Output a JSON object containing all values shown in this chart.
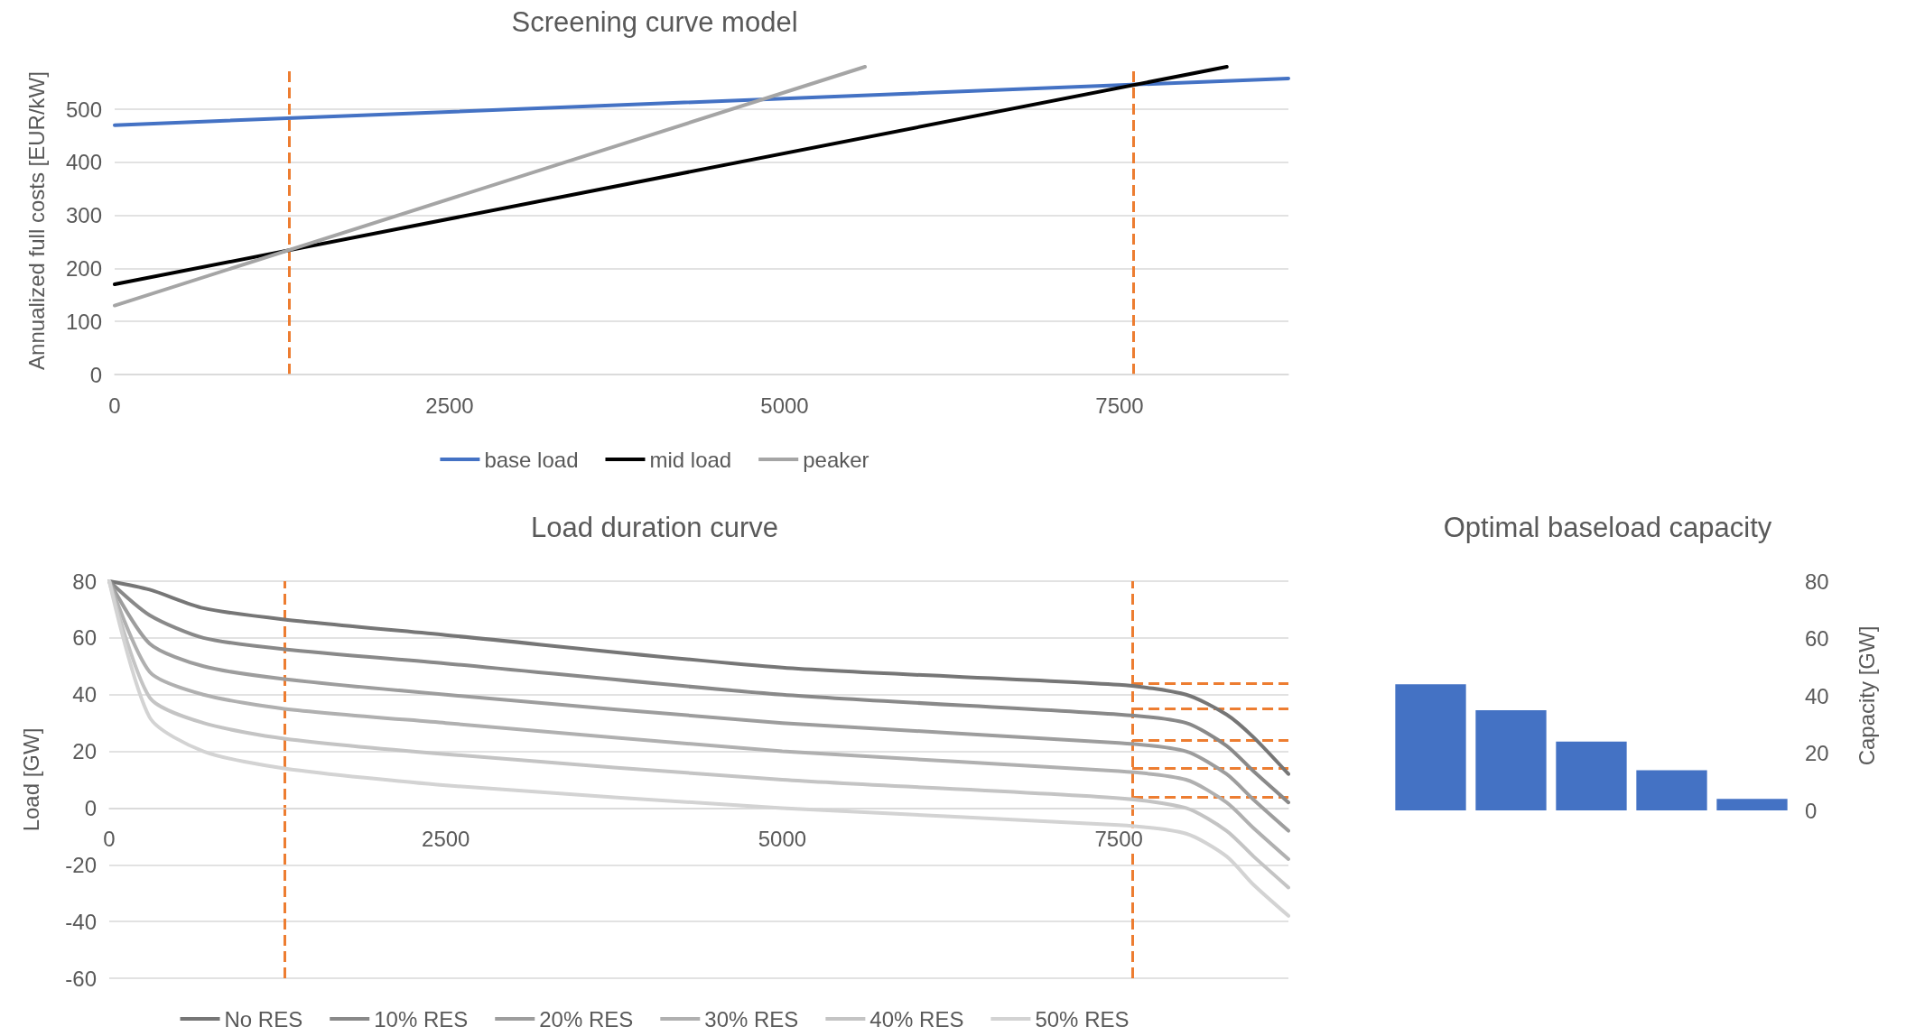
{
  "chart_data": [
    {
      "type": "line",
      "title": "Screening curve model",
      "ylabel": "Annualized full costs [EUR/kW]",
      "xlim": [
        0,
        8760
      ],
      "xticks": [
        0,
        2500,
        5000,
        7500
      ],
      "ylim": [
        0,
        580
      ],
      "yticks": [
        0,
        100,
        200,
        300,
        400,
        500
      ],
      "grid": "y",
      "legend": "bottom",
      "line_style": "solid",
      "marker": "none",
      "series": [
        {
          "name": "base load",
          "color": "#4472c4",
          "x": [
            0,
            8760
          ],
          "values": [
            470,
            558
          ]
        },
        {
          "name": "mid load",
          "color": "#000000",
          "x": [
            0,
            8300
          ],
          "values": [
            170,
            580
          ]
        },
        {
          "name": "peaker",
          "color": "#a5a5a5",
          "x": [
            0,
            5600
          ],
          "values": [
            130,
            580
          ]
        }
      ],
      "ref_lines": [
        {
          "axis": "x",
          "value": 1300,
          "color": "#ed7d31",
          "line_style": "dashed"
        },
        {
          "axis": "x",
          "value": 7600,
          "color": "#ed7d31",
          "line_style": "dashed"
        }
      ]
    },
    {
      "type": "line",
      "title": "Load duration curve",
      "ylabel": "Load [GW]",
      "xlim": [
        0,
        8760
      ],
      "xticks": [
        0,
        2500,
        5000,
        7500
      ],
      "ylim": [
        -60,
        80
      ],
      "yticks": [
        -60,
        -40,
        -20,
        0,
        20,
        40,
        60,
        80
      ],
      "grid": "y",
      "legend": "bottom",
      "line_style": "solid",
      "marker": "none",
      "x": [
        0,
        300,
        700,
        1300,
        2500,
        5000,
        7500,
        8000,
        8300,
        8500,
        8760
      ],
      "series": [
        {
          "name": "No RES",
          "color": "#767676",
          "values": [
            80,
            77,
            70.5,
            66.5,
            61,
            49.5,
            43.5,
            40,
            33,
            25,
            12
          ]
        },
        {
          "name": "10% RES",
          "color": "#898989",
          "values": [
            80,
            68,
            60,
            56,
            51,
            40,
            33,
            30,
            22,
            13,
            2
          ]
        },
        {
          "name": "20% RES",
          "color": "#9d9d9d",
          "values": [
            80,
            58,
            50,
            45.5,
            40,
            30,
            23,
            20,
            12,
            3,
            -8
          ]
        },
        {
          "name": "30% RES",
          "color": "#b0b0b0",
          "values": [
            80,
            48,
            40,
            35,
            30,
            20,
            13,
            10,
            2,
            -7,
            -18
          ]
        },
        {
          "name": "40% RES",
          "color": "#c4c4c4",
          "values": [
            80,
            39,
            30,
            24.5,
            19,
            10,
            3.5,
            0,
            -8,
            -17,
            -28
          ]
        },
        {
          "name": "50% RES",
          "color": "#d3d3d3",
          "values": [
            80,
            32,
            20,
            14,
            8,
            0,
            -6,
            -9,
            -17,
            -27,
            -38
          ]
        }
      ],
      "ref_lines": [
        {
          "axis": "x",
          "value": 1300,
          "color": "#ed7d31",
          "line_style": "dashed"
        },
        {
          "axis": "x",
          "value": 7600,
          "color": "#ed7d31",
          "line_style": "dashed"
        },
        {
          "axis": "y",
          "value": 44,
          "color": "#ed7d31",
          "line_style": "dashed"
        },
        {
          "axis": "y",
          "value": 35,
          "color": "#ed7d31",
          "line_style": "dashed"
        },
        {
          "axis": "y",
          "value": 24,
          "color": "#ed7d31",
          "line_style": "dashed"
        },
        {
          "axis": "y",
          "value": 14,
          "color": "#ed7d31",
          "line_style": "dashed"
        },
        {
          "axis": "y",
          "value": 4,
          "color": "#ed7d31",
          "line_style": "dashed"
        }
      ]
    },
    {
      "type": "bar",
      "title": "Optimal baseload capacity",
      "ylabel": "Capacity [GW]",
      "ylim": [
        0,
        80
      ],
      "yticks": [
        0,
        20,
        40,
        60,
        80
      ],
      "grid": false,
      "categories": [
        null,
        null,
        null,
        null,
        null
      ],
      "series": [
        {
          "color": "#4472c4",
          "values": [
            44,
            35,
            24,
            14,
            4
          ]
        }
      ]
    }
  ]
}
